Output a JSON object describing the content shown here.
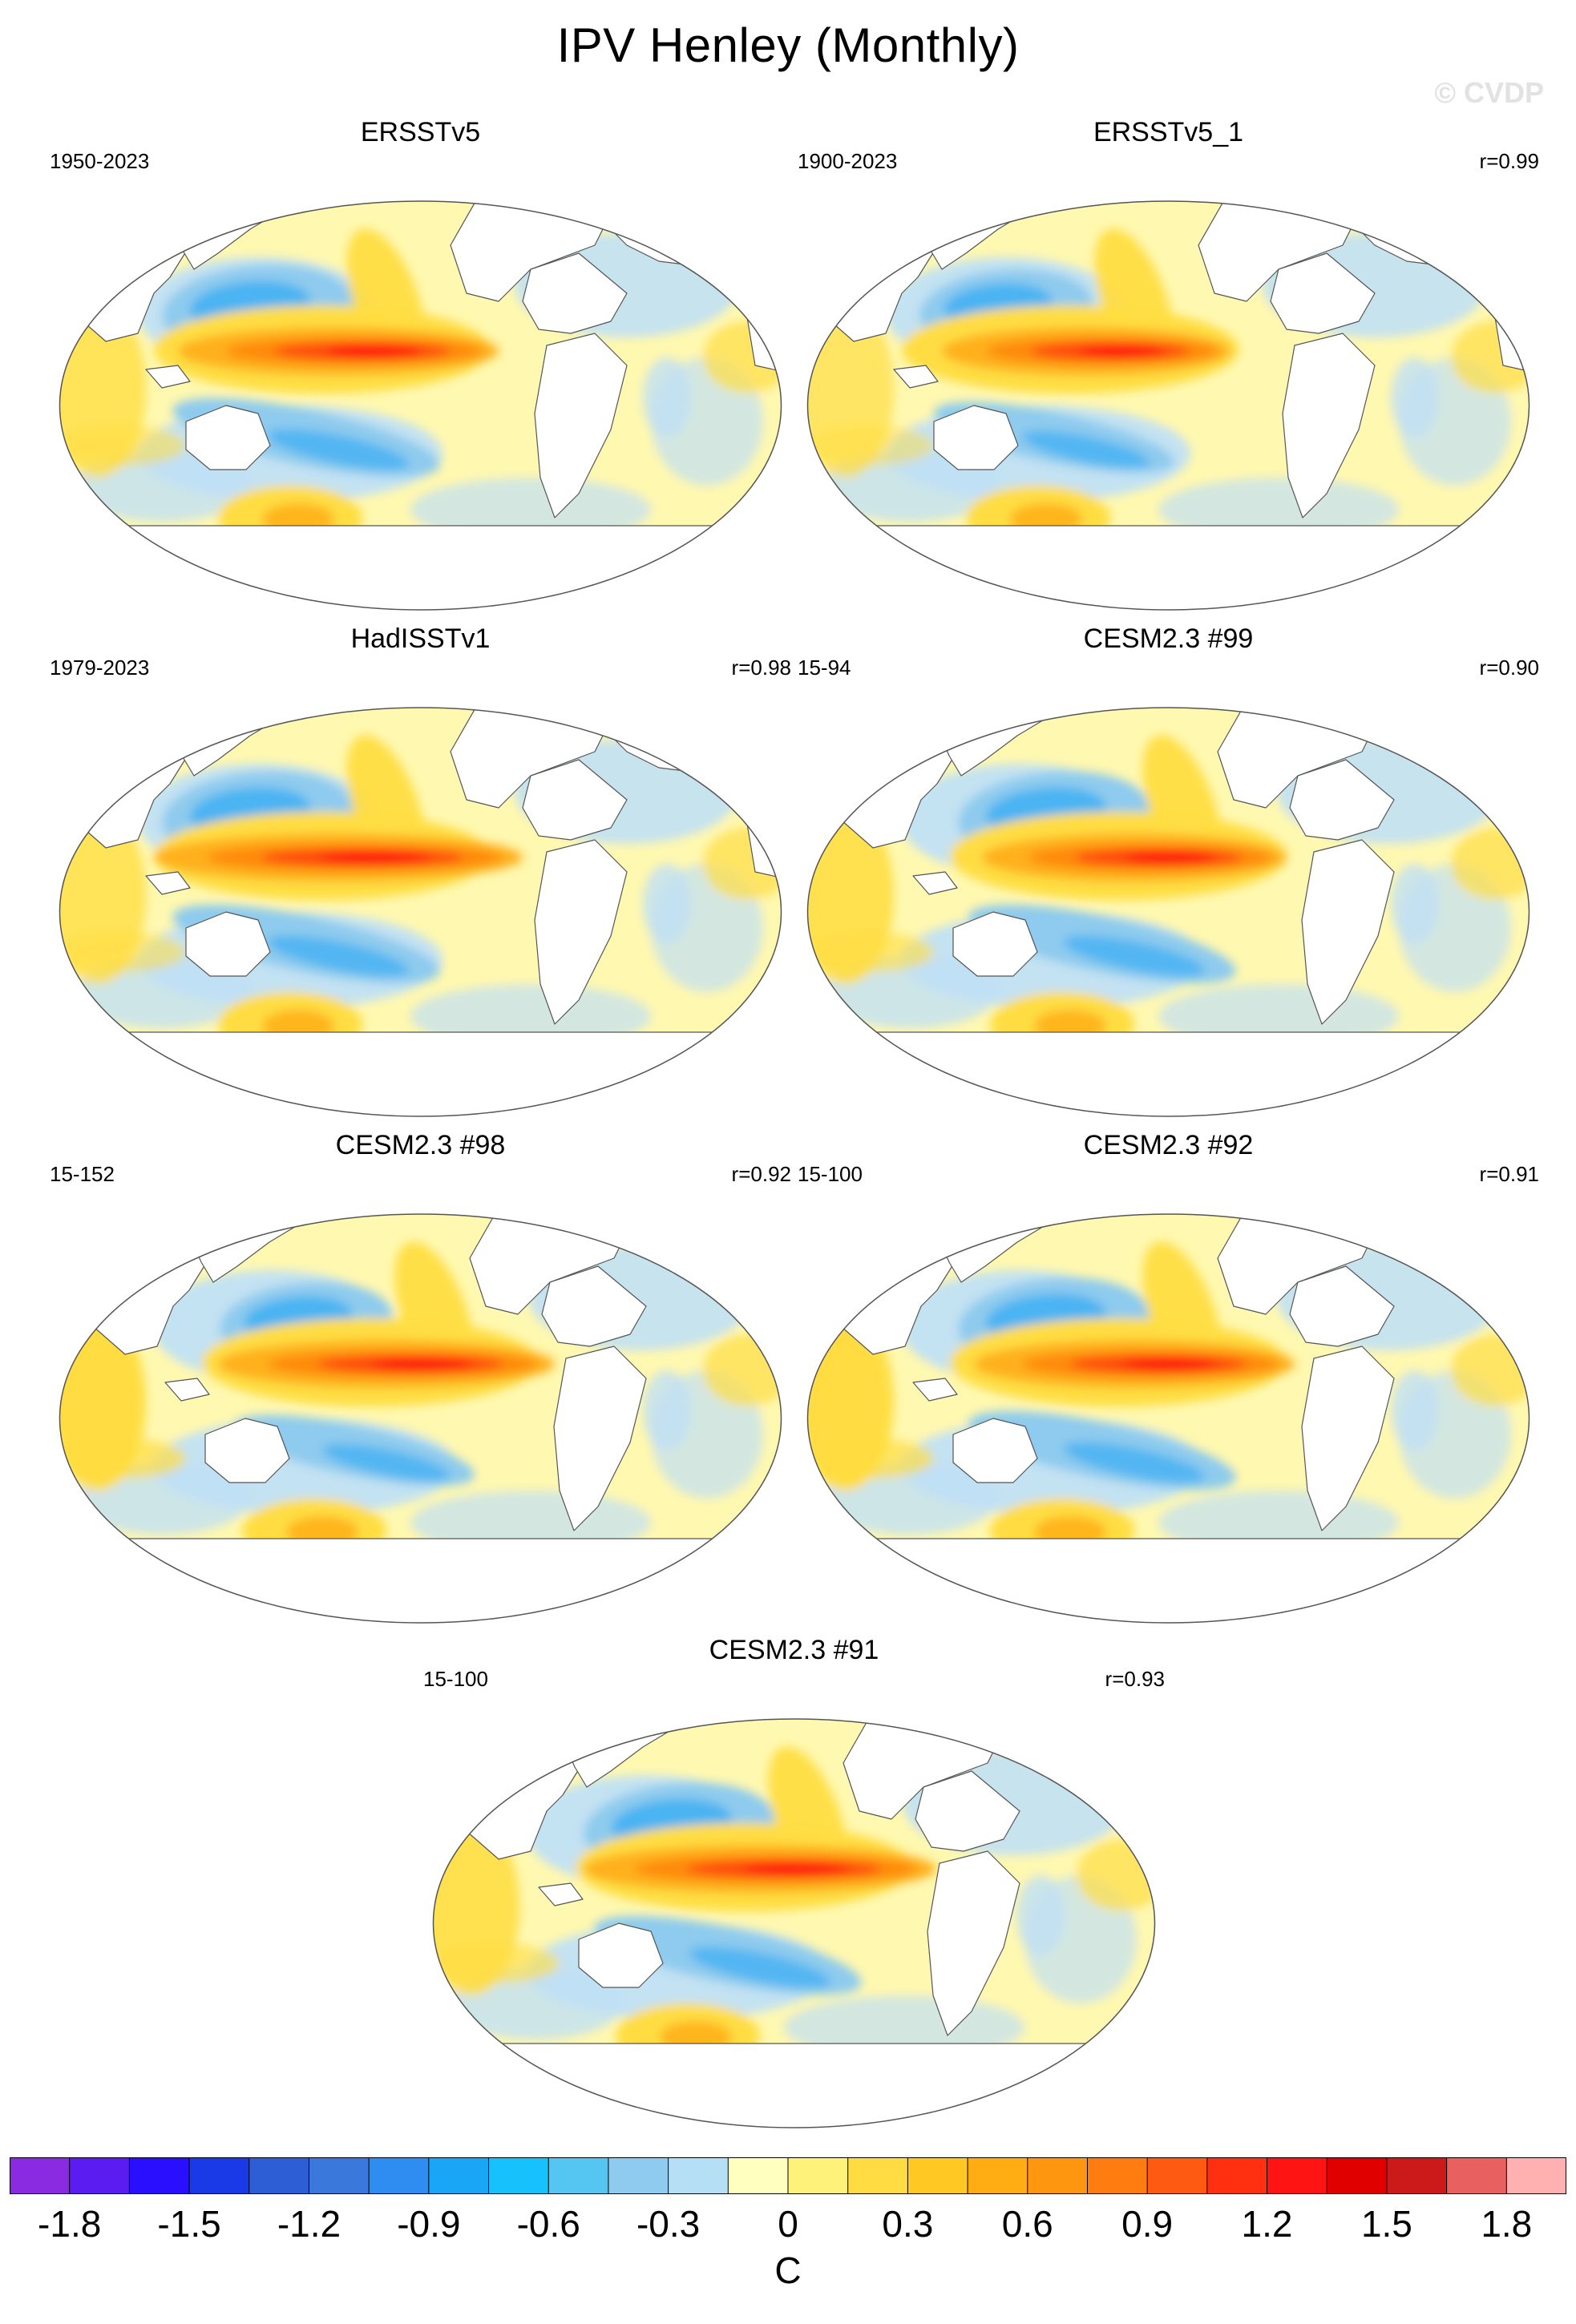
{
  "title": "IPV Henley (Monthly)",
  "watermark": "© CVDP",
  "panels": [
    {
      "title": "ERSSTv5",
      "period": "1950-2023",
      "corr": ""
    },
    {
      "title": "ERSSTv5_1",
      "period": "1900-2023",
      "corr": "r=0.99"
    },
    {
      "title": "HadISSTv1",
      "period": "1979-2023",
      "corr": "r=0.98"
    },
    {
      "title": "CESM2.3 #99",
      "period": "15-94",
      "corr": "r=0.90"
    },
    {
      "title": "CESM2.3 #98",
      "period": "15-152",
      "corr": "r=0.92"
    },
    {
      "title": "CESM2.3 #92",
      "period": "15-100",
      "corr": "r=0.91"
    },
    {
      "title": "CESM2.3 #91",
      "period": "15-100",
      "corr": "r=0.93"
    }
  ],
  "colorbar": {
    "colors": [
      "#8a2be2",
      "#5a1cf0",
      "#2a0fff",
      "#1a3ae8",
      "#2e5ed6",
      "#3a78dc",
      "#2f8cf0",
      "#1aa6f7",
      "#16c1fc",
      "#55c6f2",
      "#8ecbee",
      "#b4dff5",
      "#ffffbf",
      "#fff27a",
      "#ffdd42",
      "#ffc823",
      "#ffad12",
      "#ff9610",
      "#ff7d10",
      "#ff5a12",
      "#ff3010",
      "#ff1414",
      "#e00000",
      "#cc1a1a",
      "#e86060",
      "#ffb0b0"
    ],
    "labels": [
      "-1.8",
      "-1.5",
      "-1.2",
      "-0.9",
      "-0.6",
      "-0.3",
      "0",
      "0.3",
      "0.6",
      "0.9",
      "1.2",
      "1.5",
      "1.8"
    ],
    "unit": "C"
  }
}
